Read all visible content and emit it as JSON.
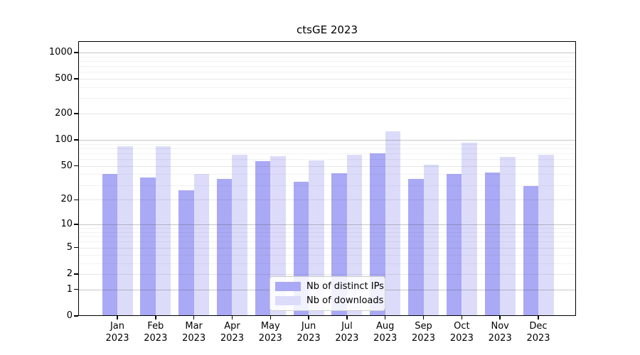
{
  "figure": {
    "title": "ctsGE 2023",
    "background_color": "#ffffff"
  },
  "chart_data": {
    "type": "bar",
    "title": "ctsGE 2023",
    "scale": "log1p (symlog-like, linear at 0, log above)",
    "grid": true,
    "categories": [
      "Jan 2023",
      "Feb 2023",
      "Mar 2023",
      "Apr 2023",
      "May 2023",
      "Jun 2023",
      "Jul 2023",
      "Aug 2023",
      "Sep 2023",
      "Oct 2023",
      "Nov 2023",
      "Dec 2023"
    ],
    "series": [
      {
        "name": "Nb of distinct IPs",
        "color": "#a9a9f5",
        "values": [
          40,
          37,
          26,
          35,
          57,
          33,
          41,
          70,
          35,
          40,
          42,
          29
        ]
      },
      {
        "name": "Nb of downloads",
        "color": "#dcdcfa",
        "values": [
          85,
          85,
          40,
          68,
          65,
          58,
          68,
          125,
          52,
          93,
          64,
          67
        ]
      }
    ],
    "ylim": [
      0,
      1340
    ],
    "yticks": [
      1000,
      500,
      200,
      100,
      50,
      20,
      10,
      5,
      2,
      1,
      0
    ],
    "legend_position": "lower center"
  },
  "axes": {
    "y_ticks": [
      {
        "label": "1000",
        "value": 1000
      },
      {
        "label": "500",
        "value": 500
      },
      {
        "label": "200",
        "value": 200
      },
      {
        "label": "100",
        "value": 100
      },
      {
        "label": "50",
        "value": 50
      },
      {
        "label": "20",
        "value": 20
      },
      {
        "label": "10",
        "value": 10
      },
      {
        "label": "5",
        "value": 5
      },
      {
        "label": "2",
        "value": 2
      },
      {
        "label": "1",
        "value": 1
      },
      {
        "label": "0",
        "value": 0
      }
    ],
    "x_ticks": [
      {
        "month": "Jan",
        "year": "2023"
      },
      {
        "month": "Feb",
        "year": "2023"
      },
      {
        "month": "Mar",
        "year": "2023"
      },
      {
        "month": "Apr",
        "year": "2023"
      },
      {
        "month": "May",
        "year": "2023"
      },
      {
        "month": "Jun",
        "year": "2023"
      },
      {
        "month": "Jul",
        "year": "2023"
      },
      {
        "month": "Aug",
        "year": "2023"
      },
      {
        "month": "Sep",
        "year": "2023"
      },
      {
        "month": "Oct",
        "year": "2023"
      },
      {
        "month": "Nov",
        "year": "2023"
      },
      {
        "month": "Dec",
        "year": "2023"
      }
    ]
  },
  "legend": {
    "items": [
      {
        "label": "Nb of distinct IPs",
        "color": "#a9a9f5"
      },
      {
        "label": "Nb of downloads",
        "color": "#dcdcfa"
      }
    ]
  }
}
